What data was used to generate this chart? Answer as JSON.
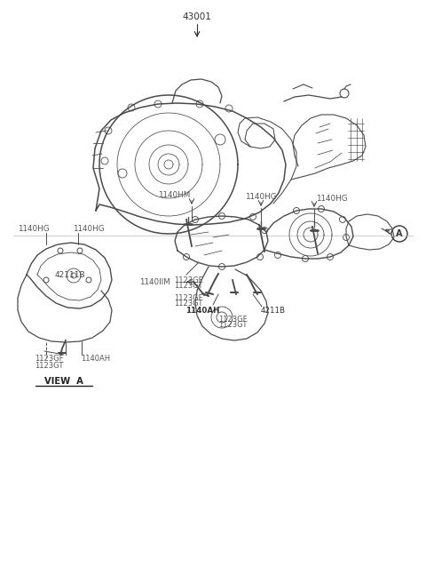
{
  "bg_color": "#ffffff",
  "line_color": "#4a4a4a",
  "text_color": "#555555",
  "label_43001": "43001",
  "label_view_a": "VIEW  A",
  "labels_bottom_left": {
    "1140HG_a": "1140HG",
    "1140HG_b": "1140HG",
    "42111B_left": "42111B",
    "1123GF_left": "1123GF",
    "1123GT_left": "1123GT",
    "1140AH_left": "1140AH"
  },
  "labels_bottom_mid": {
    "1123GF_mid": "1123GF",
    "1123GT_mid": "1123GT",
    "1140HM": "1140HM",
    "1140HG_mid": "1140HG",
    "1140IIM": "1140IIM",
    "1123GF_mid2": "1123GF",
    "1123GT_mid2": "1123GT"
  },
  "labels_bottom_right": {
    "1140HG_r1": "1140HG",
    "1140HG_r2": "1140HG",
    "A_label": "A",
    "1140AH_right": "1140AH",
    "42111B_right": "4211B",
    "1123GF_right": "1123GF",
    "1123GT_right": "1123GT"
  }
}
